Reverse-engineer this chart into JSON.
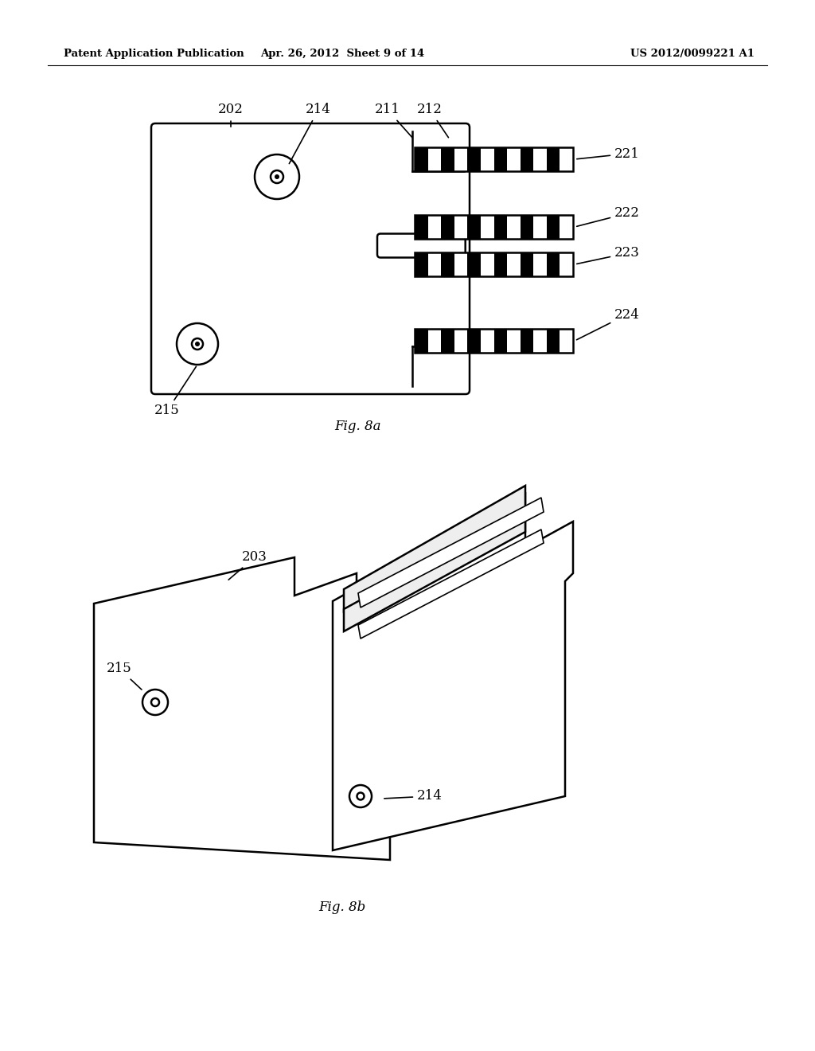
{
  "bg_color": "#ffffff",
  "line_color": "#000000",
  "header_left": "Patent Application Publication",
  "header_mid": "Apr. 26, 2012  Sheet 9 of 14",
  "header_right": "US 2012/0099221 A1",
  "fig8a_label": "Fig. 8a",
  "fig8b_label": "Fig. 8b"
}
